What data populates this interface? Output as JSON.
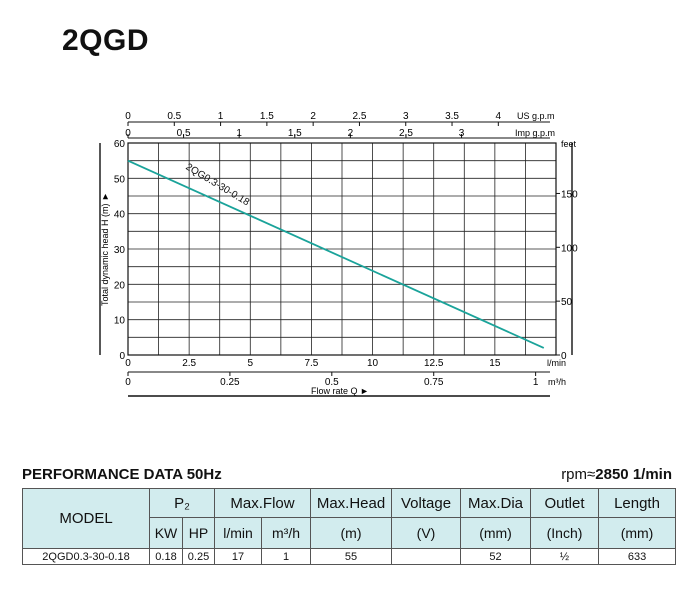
{
  "model_title": "2QGD",
  "chart_data": {
    "type": "line",
    "series": [
      {
        "name": "2QG0.3-30-0.18",
        "x": [
          0,
          17
        ],
        "y": [
          55,
          2
        ]
      }
    ],
    "xlabel": "Flow rate Q",
    "ylabel": "Total dynamic head H (m)",
    "xlim": [
      0,
      17.5
    ],
    "ylim": [
      0,
      60
    ],
    "x_ticks_lmin": [
      0,
      2.5,
      5,
      7.5,
      10,
      12.5,
      15
    ],
    "x_unit_lmin": "l/min",
    "x_ticks_m3h": [
      "0",
      "0.25",
      "0.5",
      "0.75",
      "1"
    ],
    "x_ticks_m3h_values": [
      0,
      0.25,
      0.5,
      0.75,
      1
    ],
    "x_unit_m3h": "m³/h",
    "top_ticks_us": [
      "0",
      "0.5",
      "1",
      "1.5",
      "2",
      "2.5",
      "3",
      "3.5",
      "4"
    ],
    "top_ticks_us_values": [
      0,
      0.5,
      1,
      1.5,
      2,
      2.5,
      3,
      3.5,
      4
    ],
    "top_unit_us": "US g.p.m",
    "top_ticks_imp": [
      "0",
      "0.5",
      "1",
      "1.5",
      "2",
      "2.5",
      "3"
    ],
    "top_ticks_imp_values": [
      0,
      0.5,
      1,
      1.5,
      2,
      2.5,
      3
    ],
    "top_unit_imp": "Imp g.p.m",
    "y_ticks_m": [
      0,
      10,
      20,
      30,
      40,
      50,
      60
    ],
    "y_ticks_feet": [
      0,
      50,
      100,
      150
    ],
    "y_unit_feet": "feet",
    "grid": true,
    "colors": {
      "curve": "#1aa39a",
      "grid": "#222222"
    }
  },
  "performance": {
    "title": "PERFORMANCE DATA 50Hz",
    "rpm_label": "rpm≈",
    "rpm_value": "2850",
    "rpm_unit": "1/min",
    "headers": {
      "model": "MODEL",
      "p2": "P₂",
      "max_flow": "Max.Flow",
      "max_head": "Max.Head",
      "voltage": "Voltage",
      "max_dia": "Max.Dia",
      "outlet": "Outlet",
      "length": "Length"
    },
    "subheaders": {
      "kw": "KW",
      "hp": "HP",
      "lmin": "l/min",
      "m3h": "m³/h",
      "head_unit": "(m)",
      "voltage_unit": "(V)",
      "dia_unit": "(mm)",
      "outlet_unit": "(Inch)",
      "length_unit": "(mm)"
    },
    "row": {
      "model": "2QGD0.3-30-0.18",
      "kw": "0.18",
      "hp": "0.25",
      "lmin": "17",
      "m3h": "1",
      "head": "55",
      "voltage": "",
      "dia": "52",
      "outlet": "½",
      "length": "633"
    }
  }
}
